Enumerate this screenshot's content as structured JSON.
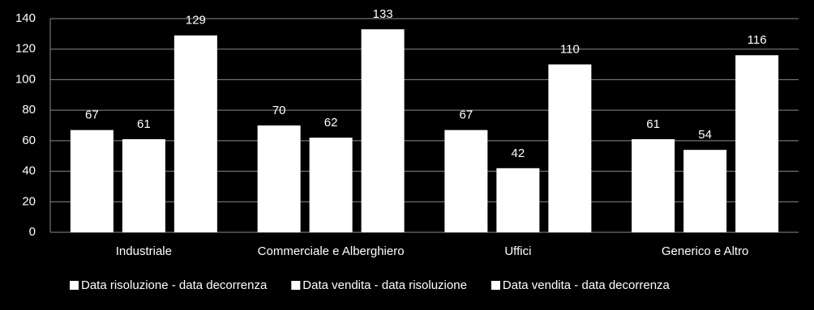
{
  "chart_data": {
    "type": "bar",
    "categories": [
      "Industriale",
      "Commerciale e Alberghiero",
      "Uffici",
      "Generico e Altro"
    ],
    "series": [
      {
        "name": "Data risoluzione - data decorrenza",
        "color": "#ffffff",
        "values": [
          67,
          70,
          67,
          61
        ]
      },
      {
        "name": "Data vendita - data risoluzione",
        "color": "#ffffff",
        "values": [
          61,
          62,
          42,
          54
        ]
      },
      {
        "name": "Data vendita - data decorrenza",
        "color": "#ffffff",
        "values": [
          129,
          133,
          110,
          116
        ]
      }
    ],
    "ylim": [
      0,
      140
    ],
    "yticks": [
      0,
      20,
      40,
      60,
      80,
      100,
      120,
      140
    ],
    "grid": true,
    "legend": "bottom"
  }
}
